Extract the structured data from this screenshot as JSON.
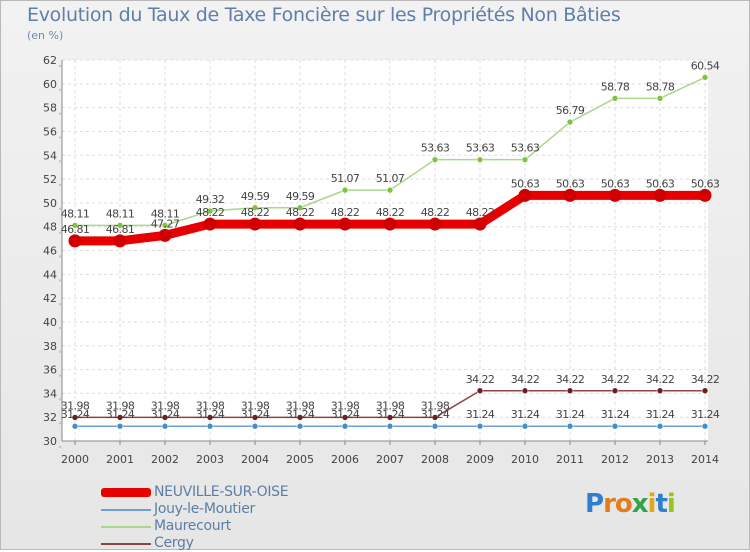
{
  "title": "Evolution du Taux de Taxe Foncière sur les Propriétés Non Bâties",
  "subtitle": "(en %)",
  "logo": {
    "letters": [
      "P",
      "r",
      "o",
      "x",
      "i",
      "t",
      "i"
    ],
    "colors": [
      "#2f7fd0",
      "#e57d1c",
      "#e57d1c",
      "#2fa34a",
      "#e0a817",
      "#2f7fd0",
      "#9ac31c"
    ]
  },
  "chart_data": {
    "type": "line",
    "categories": [
      "2000",
      "2001",
      "2002",
      "2003",
      "2004",
      "2005",
      "2006",
      "2007",
      "2008",
      "2009",
      "2010",
      "2011",
      "2012",
      "2013",
      "2014"
    ],
    "ylim": [
      30,
      62
    ],
    "yticks": [
      "30",
      "32",
      "34",
      "36",
      "38",
      "40",
      "42",
      "44",
      "46",
      "48",
      "50",
      "52",
      "54",
      "56",
      "58",
      "60",
      "62"
    ],
    "grid": true,
    "series": [
      {
        "name": "NEUVILLE-SUR-OISE",
        "color": "#e60000",
        "point_color": "#d00000",
        "values": [
          46.81,
          46.81,
          47.27,
          48.22,
          48.22,
          48.22,
          48.22,
          48.22,
          48.22,
          48.22,
          50.63,
          50.63,
          50.63,
          50.63,
          50.63
        ],
        "labels": [
          "46.81",
          "46.81",
          "47.27",
          "48.22",
          "48.22",
          "48.22",
          "48.22",
          "48.22",
          "48.22",
          "48.22",
          "50.63",
          "50.63",
          "50.63",
          "50.63",
          "50.63"
        ]
      },
      {
        "name": "Jouy-le-Moutier",
        "color": "#6f9fcf",
        "point_color": "#3f8fd0",
        "values": [
          31.24,
          31.24,
          31.24,
          31.24,
          31.24,
          31.24,
          31.24,
          31.24,
          31.24,
          31.24,
          31.24,
          31.24,
          31.24,
          31.24,
          31.24
        ],
        "labels": [
          "31.24",
          "31.24",
          "31.24",
          "31.24",
          "31.24",
          "31.24",
          "31.24",
          "31.24",
          "31.24",
          "31.24",
          "31.24",
          "31.24",
          "31.24",
          "31.24",
          "31.24"
        ]
      },
      {
        "name": "Maurecourt",
        "color": "#a8d888",
        "point_color": "#7fc33f",
        "values": [
          48.11,
          48.11,
          48.11,
          49.32,
          49.59,
          49.59,
          51.07,
          51.07,
          53.63,
          53.63,
          53.63,
          56.79,
          58.78,
          58.78,
          60.54
        ],
        "labels": [
          "48.11",
          "48.11",
          "48.11",
          "49.32",
          "49.59",
          "49.59",
          "51.07",
          "51.07",
          "53.63",
          "53.63",
          "53.63",
          "56.79",
          "58.78",
          "58.78",
          "60.54"
        ]
      },
      {
        "name": "Cergy",
        "color": "#8f4444",
        "point_color": "#6a1f1f",
        "values": [
          31.98,
          31.98,
          31.98,
          31.98,
          31.98,
          31.98,
          31.98,
          31.98,
          31.98,
          34.22,
          34.22,
          34.22,
          34.22,
          34.22,
          34.22
        ],
        "labels": [
          "31.98",
          "31.98",
          "31.98",
          "31.98",
          "31.98",
          "31.98",
          "31.98",
          "31.98",
          "31.98",
          "34.22",
          "34.22",
          "34.22",
          "34.22",
          "34.22",
          "34.22"
        ]
      }
    ]
  }
}
